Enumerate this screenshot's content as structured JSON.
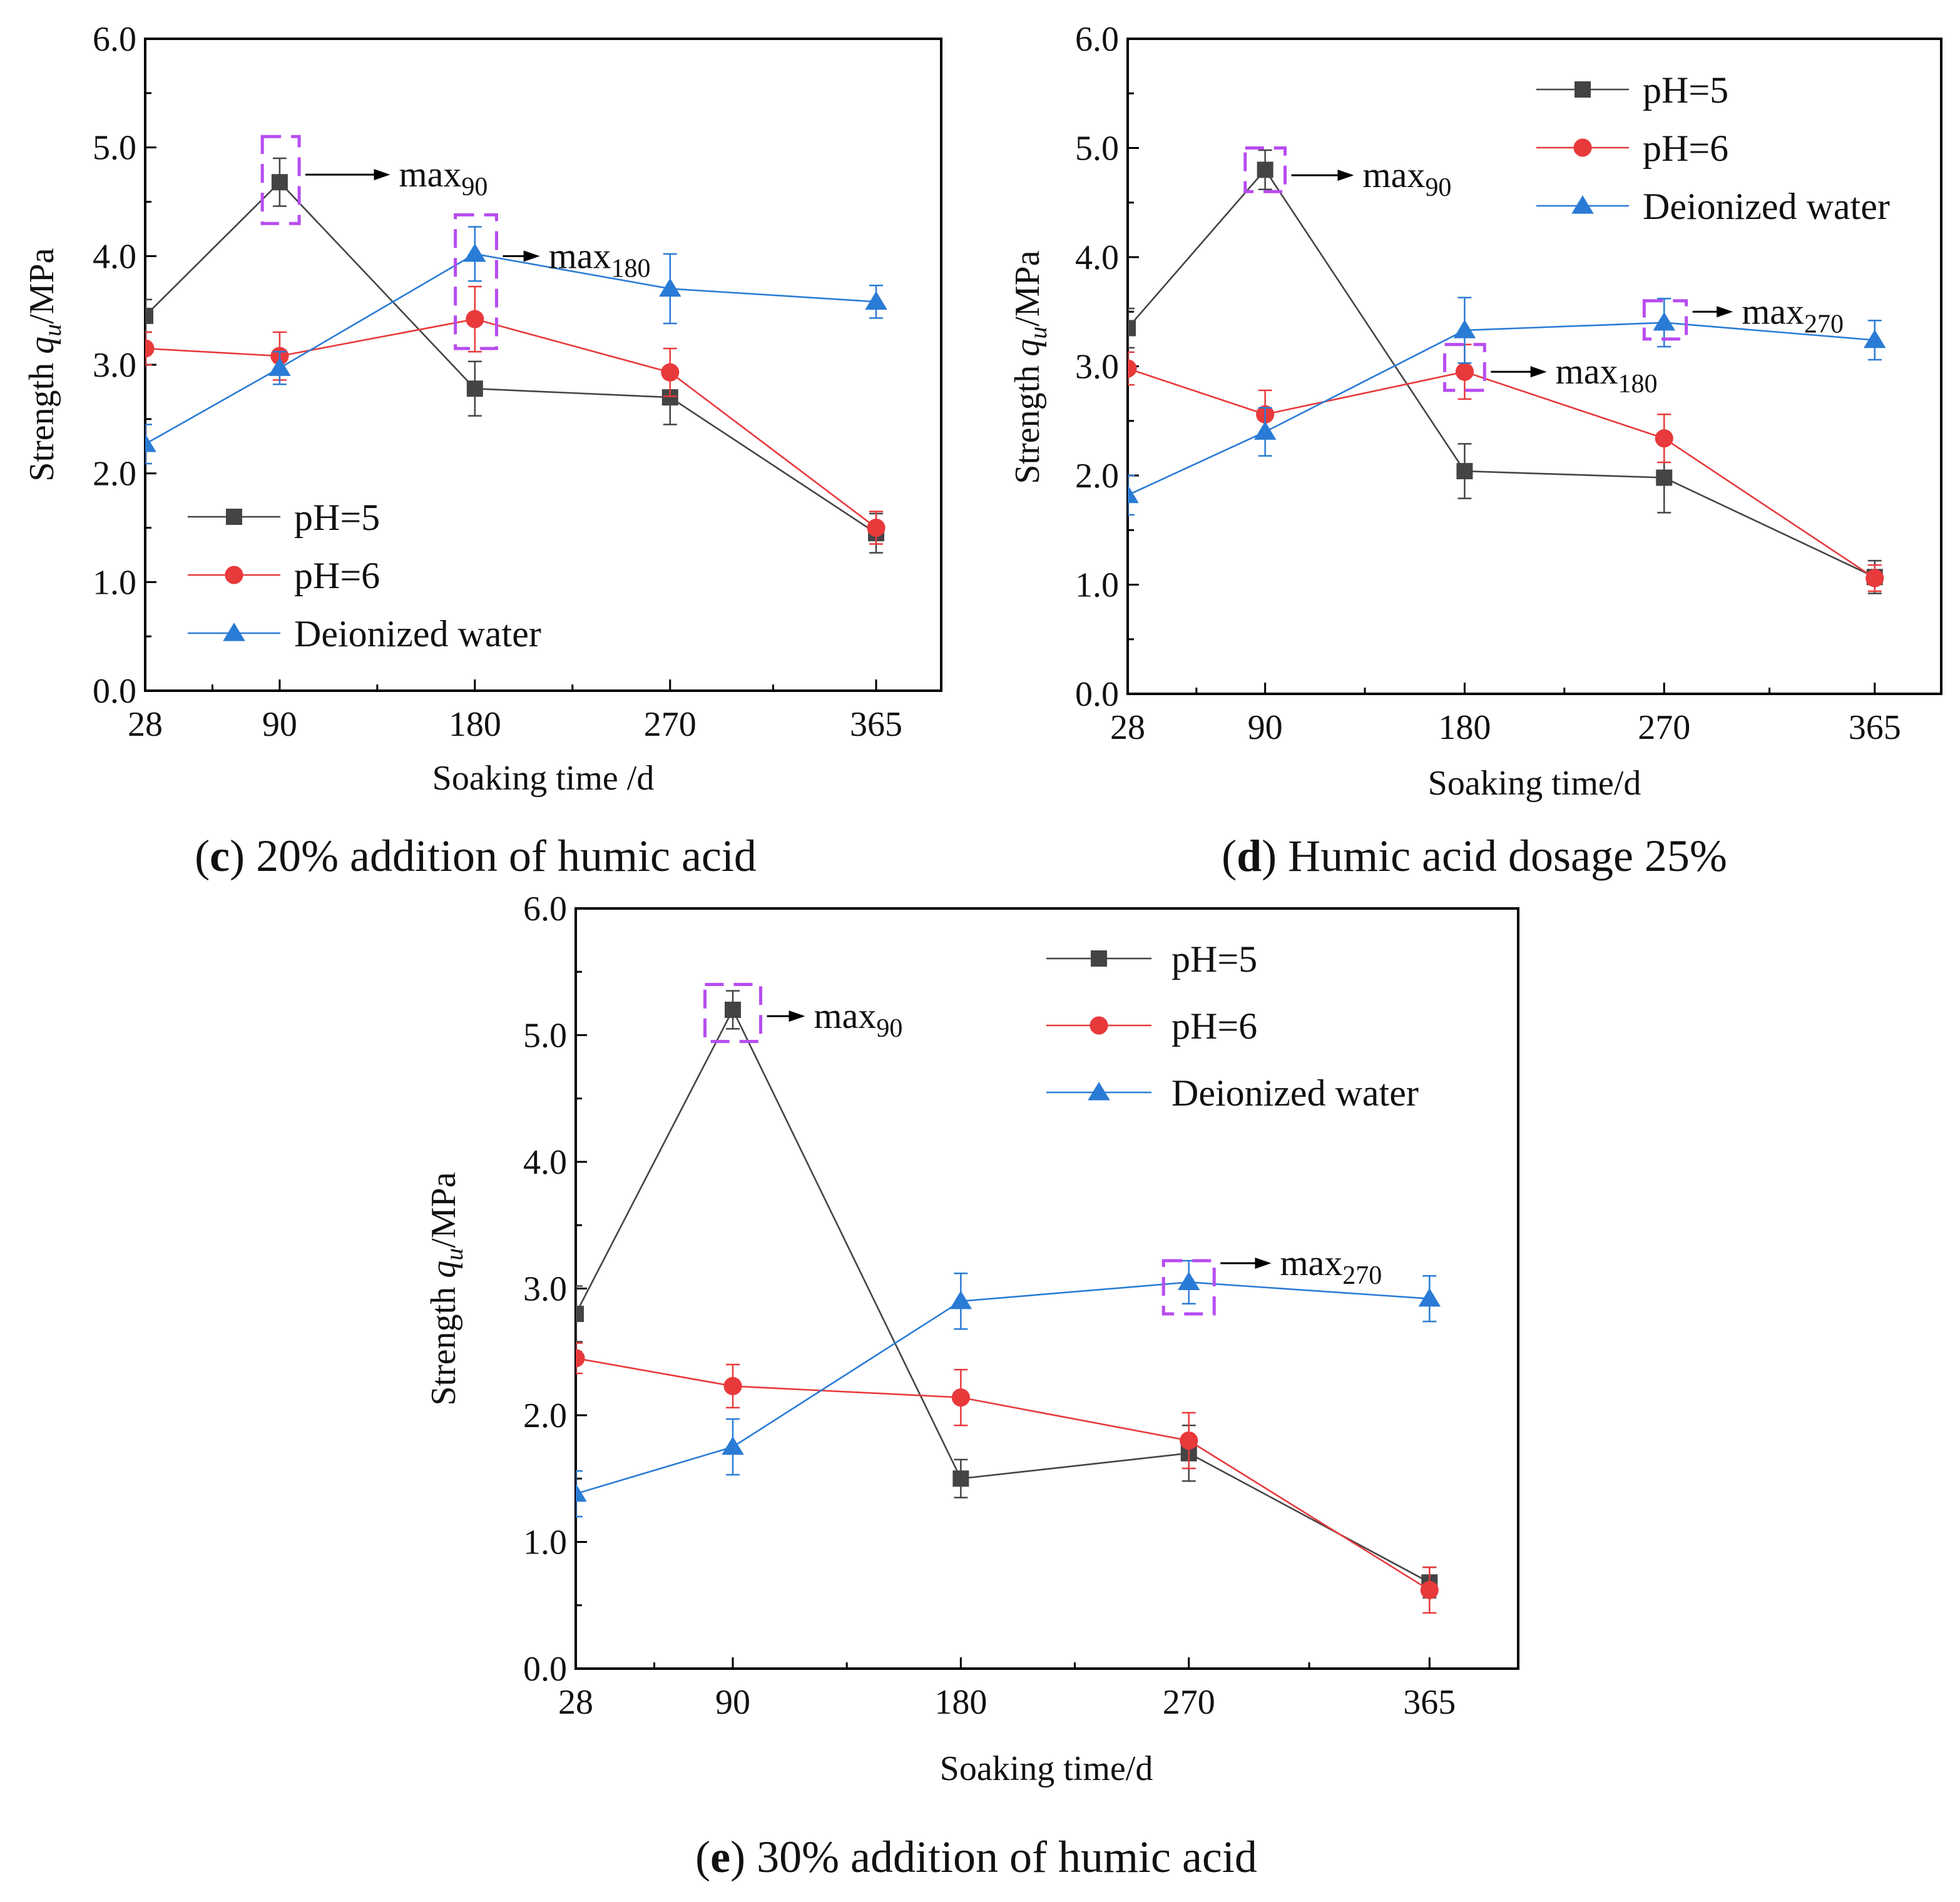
{
  "chart_data": [
    {
      "id": "c",
      "type": "line",
      "caption_letter": "c",
      "caption_text": " 20% addition of humic acid",
      "xlabel": "Soaking time /d",
      "ylabel_prefix": "Strength ",
      "ylabel_var": "q",
      "ylabel_sub": "u",
      "ylabel_suffix": "/MPa",
      "categories": [
        "28",
        "90",
        "180",
        "270",
        "365"
      ],
      "x": [
        28,
        90,
        180,
        270,
        365
      ],
      "xlim": [
        28,
        395
      ],
      "ylim": [
        0,
        6
      ],
      "yticks": [
        "0.0",
        "1.0",
        "2.0",
        "3.0",
        "4.0",
        "5.0",
        "6.0"
      ],
      "series": [
        {
          "name": "pH=5",
          "color": "#444444",
          "marker": "square",
          "values": [
            3.45,
            4.68,
            2.78,
            2.7,
            1.45
          ],
          "errors": [
            0.15,
            0.22,
            0.25,
            0.25,
            0.18
          ]
        },
        {
          "name": "pH=6",
          "color": "#e8393b",
          "marker": "circle",
          "values": [
            3.15,
            3.08,
            3.42,
            2.93,
            1.5
          ],
          "errors": [
            0.15,
            0.22,
            0.3,
            0.22,
            0.15
          ]
        },
        {
          "name": "Deionized water",
          "color": "#2a7bd5",
          "marker": "triangle",
          "values": [
            2.27,
            2.97,
            4.02,
            3.7,
            3.58
          ],
          "errors": [
            0.18,
            0.15,
            0.25,
            0.32,
            0.15
          ]
        }
      ],
      "annotations": [
        {
          "base": "max",
          "sub": "90",
          "x": 90,
          "y": 4.68,
          "box_x": [
            82,
            99
          ],
          "box_y": [
            4.3,
            5.1
          ],
          "text_x": 145,
          "text_y": 4.75
        },
        {
          "base": "max",
          "sub": "180",
          "x": 180,
          "y": 4.02,
          "box_x": [
            171,
            190
          ],
          "box_y": [
            3.15,
            4.38
          ],
          "text_x": 214,
          "text_y": 4.0
        }
      ],
      "legend_pos": "bottom-left"
    },
    {
      "id": "d",
      "type": "line",
      "caption_letter": "d",
      "caption_text": " Humic acid dosage 25%",
      "xlabel": "Soaking time/d",
      "ylabel_prefix": "Strength ",
      "ylabel_var": "q",
      "ylabel_sub": "u",
      "ylabel_suffix": "/MPa",
      "categories": [
        "28",
        "90",
        "180",
        "270",
        "365"
      ],
      "x": [
        28,
        90,
        180,
        270,
        365
      ],
      "xlim": [
        28,
        395
      ],
      "ylim": [
        0,
        6
      ],
      "yticks": [
        "0.0",
        "1.0",
        "2.0",
        "3.0",
        "4.0",
        "5.0",
        "6.0"
      ],
      "series": [
        {
          "name": "pH=5",
          "color": "#444444",
          "marker": "square",
          "values": [
            3.35,
            4.8,
            2.04,
            1.98,
            1.07
          ],
          "errors": [
            0.18,
            0.18,
            0.25,
            0.32,
            0.15
          ]
        },
        {
          "name": "pH=6",
          "color": "#e8393b",
          "marker": "circle",
          "values": [
            2.98,
            2.56,
            2.95,
            2.34,
            1.06
          ],
          "errors": [
            0.15,
            0.22,
            0.25,
            0.22,
            0.12
          ]
        },
        {
          "name": "Deionized water",
          "color": "#2a7bd5",
          "marker": "triangle",
          "values": [
            1.82,
            2.4,
            3.33,
            3.4,
            3.24
          ],
          "errors": [
            0.18,
            0.22,
            0.3,
            0.22,
            0.18
          ]
        }
      ],
      "annotations": [
        {
          "base": "max",
          "sub": "90",
          "x": 90,
          "y": 4.8,
          "box_x": [
            81,
            99
          ],
          "box_y": [
            4.6,
            5.0
          ],
          "text_x": 134,
          "text_y": 4.75
        },
        {
          "base": "max",
          "sub": "180",
          "x": 180,
          "y": 2.95,
          "box_x": [
            171,
            189
          ],
          "box_y": [
            2.78,
            3.2
          ],
          "text_x": 221,
          "text_y": 2.95
        },
        {
          "base": "max",
          "sub": "270",
          "x": 270,
          "y": 3.4,
          "box_x": [
            261,
            280
          ],
          "box_y": [
            3.25,
            3.6
          ],
          "text_x": 305,
          "text_y": 3.5
        }
      ],
      "legend_pos": "top-right"
    },
    {
      "id": "e",
      "type": "line",
      "caption_letter": "e",
      "caption_text": " 30% addition of humic acid",
      "xlabel": "Soaking time/d",
      "ylabel_prefix": "Strength ",
      "ylabel_var": "q",
      "ylabel_sub": "u",
      "ylabel_suffix": "/MPa",
      "categories": [
        "28",
        "90",
        "180",
        "270",
        "365"
      ],
      "x": [
        28,
        90,
        180,
        270,
        365
      ],
      "xlim": [
        28,
        400
      ],
      "ylim": [
        0,
        6
      ],
      "yticks": [
        "0.0",
        "1.0",
        "2.0",
        "3.0",
        "4.0",
        "5.0",
        "6.0"
      ],
      "series": [
        {
          "name": "pH=5",
          "color": "#444444",
          "marker": "square",
          "values": [
            2.8,
            5.2,
            1.5,
            1.7,
            0.68
          ],
          "errors": [
            0.22,
            0.15,
            0.15,
            0.22,
            0.12
          ]
        },
        {
          "name": "pH=6",
          "color": "#e8393b",
          "marker": "circle",
          "values": [
            2.45,
            2.23,
            2.14,
            1.8,
            0.62
          ],
          "errors": [
            0.12,
            0.17,
            0.22,
            0.22,
            0.18
          ]
        },
        {
          "name": "Deionized water",
          "color": "#2a7bd5",
          "marker": "triangle",
          "values": [
            1.38,
            1.75,
            2.9,
            3.05,
            2.92
          ],
          "errors": [
            0.18,
            0.22,
            0.22,
            0.17,
            0.18
          ]
        }
      ],
      "annotations": [
        {
          "base": "max",
          "sub": "90",
          "x": 90,
          "y": 5.2,
          "box_x": [
            79,
            101
          ],
          "box_y": [
            4.95,
            5.4
          ],
          "text_x": 122,
          "text_y": 5.15
        },
        {
          "base": "max",
          "sub": "270",
          "x": 270,
          "y": 3.05,
          "box_x": [
            260,
            280
          ],
          "box_y": [
            2.8,
            3.22
          ],
          "text_x": 306,
          "text_y": 3.2
        }
      ],
      "legend_pos": "top-right"
    }
  ]
}
